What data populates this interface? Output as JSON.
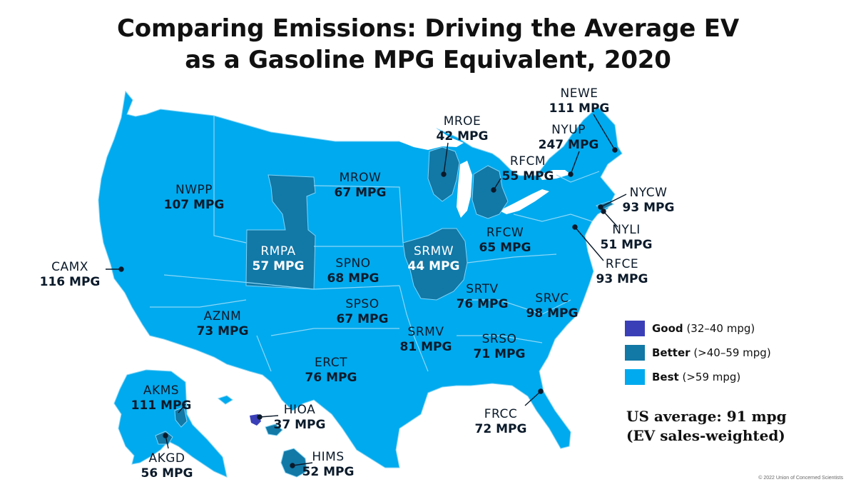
{
  "title": {
    "line1": "Comparing Emissions: Driving the Average EV",
    "line2": "as a Gasoline MPG Equivalent, 2020"
  },
  "colors": {
    "good": "#3a3fb8",
    "better": "#1278a6",
    "best": "#00aaee",
    "border": "#7fd2f5"
  },
  "regions": [
    {
      "code": "NWPP",
      "mpg": "107 MPG",
      "tier": "best"
    },
    {
      "code": "MROW",
      "mpg": "67 MPG",
      "tier": "best"
    },
    {
      "code": "MROE",
      "mpg": "42 MPG",
      "tier": "better"
    },
    {
      "code": "RFCM",
      "mpg": "55 MPG",
      "tier": "better"
    },
    {
      "code": "NEWE",
      "mpg": "111 MPG",
      "tier": "best"
    },
    {
      "code": "NYUP",
      "mpg": "247 MPG",
      "tier": "best"
    },
    {
      "code": "NYCW",
      "mpg": "93 MPG",
      "tier": "best"
    },
    {
      "code": "NYLI",
      "mpg": "51 MPG",
      "tier": "better"
    },
    {
      "code": "RFCE",
      "mpg": "93 MPG",
      "tier": "best"
    },
    {
      "code": "RFCW",
      "mpg": "65 MPG",
      "tier": "best"
    },
    {
      "code": "CAMX",
      "mpg": "116 MPG",
      "tier": "best"
    },
    {
      "code": "RMPA",
      "mpg": "57 MPG",
      "tier": "better"
    },
    {
      "code": "SPNO",
      "mpg": "68 MPG",
      "tier": "best"
    },
    {
      "code": "SRMW",
      "mpg": "44 MPG",
      "tier": "better"
    },
    {
      "code": "SRTV",
      "mpg": "76 MPG",
      "tier": "best"
    },
    {
      "code": "SRVC",
      "mpg": "98 MPG",
      "tier": "best"
    },
    {
      "code": "AZNM",
      "mpg": "73 MPG",
      "tier": "best"
    },
    {
      "code": "SPSO",
      "mpg": "67 MPG",
      "tier": "best"
    },
    {
      "code": "SRMV",
      "mpg": "81 MPG",
      "tier": "best"
    },
    {
      "code": "SRSO",
      "mpg": "71 MPG",
      "tier": "best"
    },
    {
      "code": "ERCT",
      "mpg": "76 MPG",
      "tier": "best"
    },
    {
      "code": "FRCC",
      "mpg": "72 MPG",
      "tier": "best"
    },
    {
      "code": "AKMS",
      "mpg": "111 MPG",
      "tier": "best"
    },
    {
      "code": "AKGD",
      "mpg": "56 MPG",
      "tier": "better"
    },
    {
      "code": "HIOA",
      "mpg": "37 MPG",
      "tier": "good"
    },
    {
      "code": "HIMS",
      "mpg": "52 MPG",
      "tier": "better"
    }
  ],
  "legend": [
    {
      "name": "Good",
      "range": "(32–40 mpg)",
      "tier": "good"
    },
    {
      "name": "Better",
      "range": "(>40–59 mpg)",
      "tier": "better"
    },
    {
      "name": "Best",
      "range": "(>59 mpg)",
      "tier": "best"
    }
  ],
  "us_average": {
    "line1": "US average: 91 mpg",
    "line2": "(EV sales-weighted)"
  },
  "credit": "© 2022 Union of Concerned Scientists"
}
